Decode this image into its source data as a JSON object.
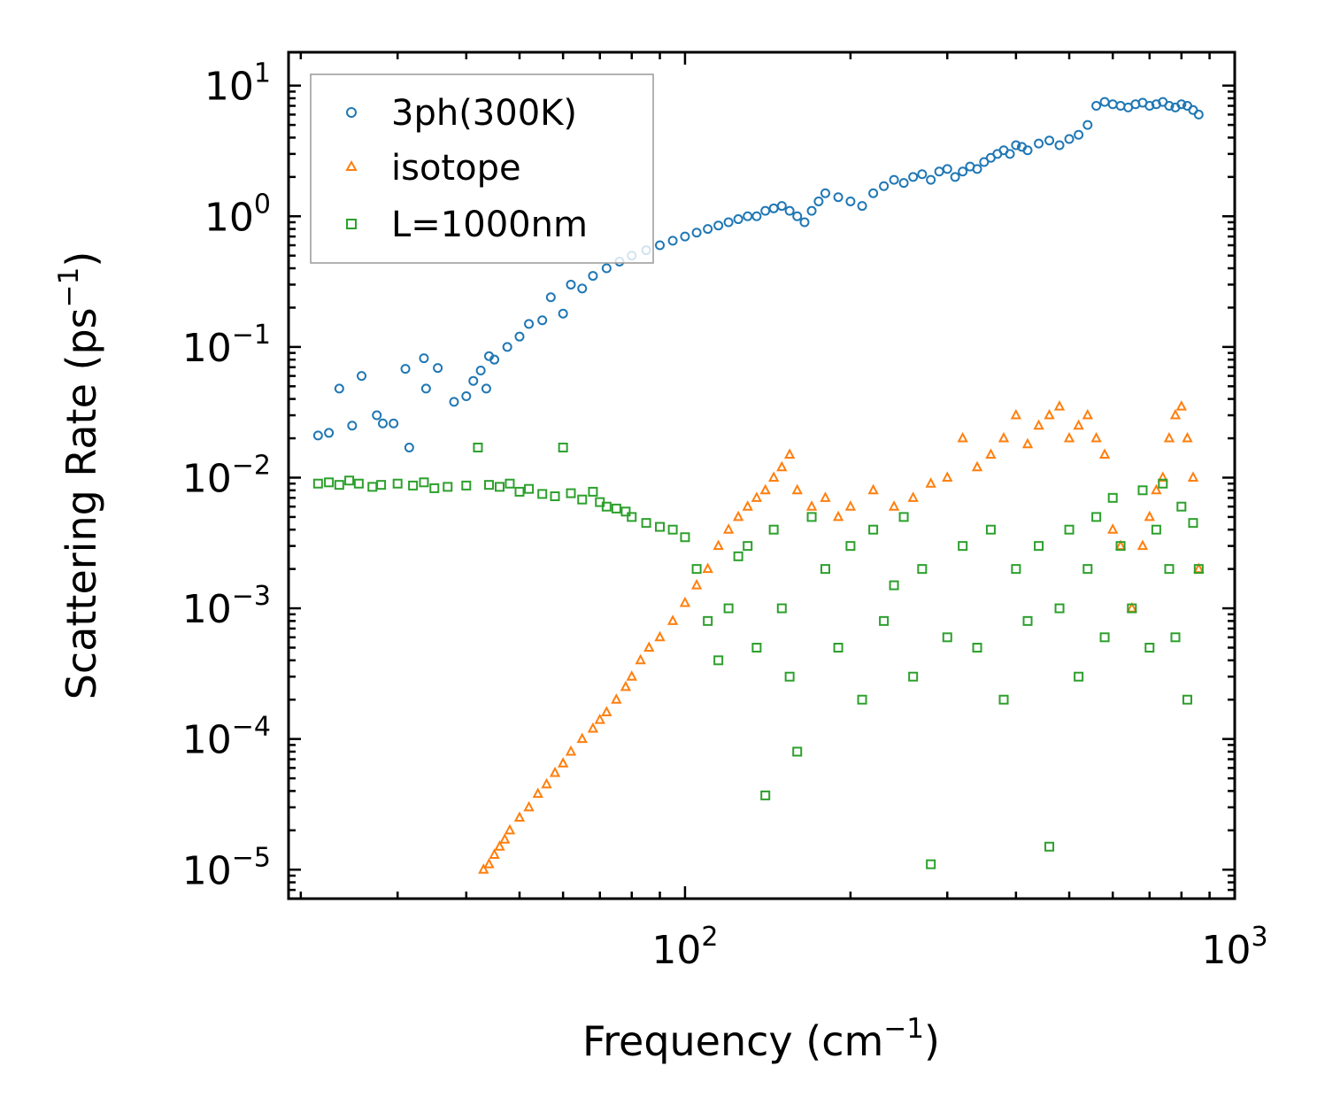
{
  "chart_data": {
    "type": "scatter",
    "title": "",
    "xlabel": "Frequency (cm",
    "xlabel_sup": "−1",
    "xlabel_end": ")",
    "ylabel": "Scattering Rate (ps",
    "ylabel_sup": "−1",
    "ylabel_end": ")",
    "xscale": "log",
    "yscale": "log",
    "xlim": [
      19,
      1000
    ],
    "ylim": [
      6e-06,
      18
    ],
    "grid": false,
    "legend_position": "top-left",
    "x_ticks": [
      {
        "value": 100,
        "base": "10",
        "exp": "2"
      },
      {
        "value": 1000,
        "base": "10",
        "exp": "3"
      }
    ],
    "y_ticks": [
      {
        "value": 10,
        "base": "10",
        "exp": "1"
      },
      {
        "value": 1,
        "base": "10",
        "exp": "0"
      },
      {
        "value": 0.1,
        "base": "10",
        "exp": "−1"
      },
      {
        "value": 0.01,
        "base": "10",
        "exp": "−2"
      },
      {
        "value": 0.001,
        "base": "10",
        "exp": "−3"
      },
      {
        "value": 0.0001,
        "base": "10",
        "exp": "−4"
      },
      {
        "value": 1e-05,
        "base": "10",
        "exp": "−5"
      }
    ],
    "series": [
      {
        "name": "3ph(300K)",
        "marker": "circle",
        "color": "#1f77b4",
        "x": [
          21.5,
          22.5,
          23.5,
          24.8,
          25.8,
          27.5,
          28.2,
          29.5,
          31.0,
          31.5,
          33.5,
          33.8,
          35.5,
          38.0,
          40.0,
          41.2,
          42.5,
          43.5,
          44.0,
          45.0,
          47.5,
          50.0,
          52.0,
          55.0,
          57.0,
          60.0,
          62.0,
          65.0,
          68.0,
          72.0,
          76.0,
          80.0,
          85.0,
          90.0,
          95.0,
          100.0,
          105.0,
          110.0,
          115.0,
          120.0,
          125.0,
          130.0,
          135.0,
          140.0,
          145.0,
          150.0,
          155.0,
          160.0,
          165.0,
          170.0,
          175.0,
          180.0,
          190.0,
          200.0,
          210.0,
          220.0,
          230.0,
          240.0,
          250.0,
          260.0,
          270.0,
          280.0,
          290.0,
          300.0,
          310.0,
          320.0,
          330.0,
          340.0,
          350.0,
          360.0,
          370.0,
          380.0,
          390.0,
          400.0,
          410.0,
          420.0,
          440.0,
          460.0,
          480.0,
          500.0,
          520.0,
          540.0,
          560.0,
          580.0,
          600.0,
          620.0,
          640.0,
          660.0,
          680.0,
          700.0,
          720.0,
          740.0,
          760.0,
          780.0,
          800.0,
          820.0,
          840.0,
          860.0
        ],
        "y": [
          0.021,
          0.022,
          0.048,
          0.025,
          0.06,
          0.03,
          0.026,
          0.026,
          0.068,
          0.017,
          0.082,
          0.048,
          0.069,
          0.038,
          0.042,
          0.055,
          0.066,
          0.048,
          0.085,
          0.08,
          0.1,
          0.12,
          0.15,
          0.16,
          0.24,
          0.18,
          0.3,
          0.28,
          0.35,
          0.4,
          0.45,
          0.5,
          0.55,
          0.6,
          0.65,
          0.7,
          0.75,
          0.8,
          0.85,
          0.9,
          0.95,
          1.0,
          1.0,
          1.1,
          1.15,
          1.2,
          1.1,
          1.0,
          0.9,
          1.1,
          1.3,
          1.5,
          1.4,
          1.3,
          1.2,
          1.5,
          1.7,
          1.9,
          1.8,
          2.0,
          2.1,
          1.9,
          2.2,
          2.3,
          2.0,
          2.2,
          2.4,
          2.3,
          2.6,
          2.8,
          3.0,
          3.2,
          3.0,
          3.5,
          3.4,
          3.2,
          3.6,
          3.8,
          3.5,
          3.9,
          4.2,
          5.0,
          7.0,
          7.5,
          7.2,
          7.0,
          6.8,
          7.2,
          7.4,
          7.0,
          7.2,
          7.5,
          7.0,
          6.8,
          7.2,
          7.0,
          6.5,
          6.0
        ]
      },
      {
        "name": "isotope",
        "marker": "triangle",
        "color": "#ff7f0e",
        "x": [
          43.0,
          44.0,
          45.0,
          46.0,
          47.0,
          48.0,
          50.0,
          52.0,
          54.0,
          56.0,
          58.0,
          60.0,
          62.0,
          65.0,
          68.0,
          70.0,
          72.0,
          75.0,
          78.0,
          80.0,
          83.0,
          86.0,
          90.0,
          95.0,
          100.0,
          105.0,
          110.0,
          115.0,
          120.0,
          125.0,
          130.0,
          135.0,
          140.0,
          145.0,
          150.0,
          155.0,
          160.0,
          170.0,
          180.0,
          190.0,
          200.0,
          220.0,
          240.0,
          260.0,
          280.0,
          300.0,
          320.0,
          340.0,
          360.0,
          380.0,
          400.0,
          420.0,
          440.0,
          460.0,
          480.0,
          500.0,
          520.0,
          540.0,
          560.0,
          580.0,
          600.0,
          620.0,
          650.0,
          680.0,
          700.0,
          720.0,
          740.0,
          760.0,
          780.0,
          800.0,
          820.0,
          840.0,
          860.0
        ],
        "y": [
          1e-05,
          1.1e-05,
          1.3e-05,
          1.5e-05,
          1.7e-05,
          2e-05,
          2.5e-05,
          3e-05,
          3.8e-05,
          4.5e-05,
          5.5e-05,
          6.5e-05,
          8e-05,
          0.0001,
          0.00012,
          0.00014,
          0.00016,
          0.0002,
          0.00025,
          0.0003,
          0.0004,
          0.0005,
          0.0006,
          0.0008,
          0.0011,
          0.0015,
          0.002,
          0.003,
          0.004,
          0.005,
          0.006,
          0.007,
          0.008,
          0.01,
          0.012,
          0.015,
          0.008,
          0.006,
          0.007,
          0.005,
          0.006,
          0.008,
          0.006,
          0.007,
          0.009,
          0.01,
          0.02,
          0.012,
          0.015,
          0.02,
          0.03,
          0.018,
          0.025,
          0.03,
          0.035,
          0.02,
          0.025,
          0.03,
          0.02,
          0.015,
          0.004,
          0.003,
          0.001,
          0.003,
          0.005,
          0.008,
          0.01,
          0.02,
          0.03,
          0.035,
          0.02,
          0.01,
          0.002
        ]
      },
      {
        "name": "L=1000nm",
        "marker": "square",
        "color": "#2ca02c",
        "x": [
          21.5,
          22.5,
          23.5,
          24.5,
          25.5,
          27.0,
          28.0,
          30.0,
          32.0,
          33.5,
          35.0,
          37.0,
          40.0,
          42.0,
          44.0,
          46.0,
          48.0,
          50.0,
          52.0,
          55.0,
          58.0,
          60.0,
          62.0,
          65.0,
          68.0,
          70.0,
          72.0,
          75.0,
          78.0,
          80.0,
          85.0,
          90.0,
          95.0,
          100.0,
          105.0,
          110.0,
          115.0,
          120.0,
          125.0,
          130.0,
          135.0,
          140.0,
          145.0,
          150.0,
          155.0,
          160.0,
          170.0,
          180.0,
          190.0,
          200.0,
          210.0,
          220.0,
          230.0,
          240.0,
          250.0,
          260.0,
          270.0,
          280.0,
          300.0,
          320.0,
          340.0,
          360.0,
          380.0,
          400.0,
          420.0,
          440.0,
          460.0,
          480.0,
          500.0,
          520.0,
          540.0,
          560.0,
          580.0,
          600.0,
          620.0,
          650.0,
          680.0,
          700.0,
          720.0,
          740.0,
          760.0,
          780.0,
          800.0,
          820.0,
          840.0,
          860.0
        ],
        "y": [
          0.009,
          0.0092,
          0.0088,
          0.0095,
          0.009,
          0.0085,
          0.0088,
          0.009,
          0.0087,
          0.0092,
          0.0083,
          0.0085,
          0.0087,
          0.017,
          0.0088,
          0.0085,
          0.009,
          0.0078,
          0.0082,
          0.0075,
          0.0072,
          0.017,
          0.0076,
          0.0068,
          0.0078,
          0.0065,
          0.006,
          0.0058,
          0.0055,
          0.005,
          0.0045,
          0.0042,
          0.004,
          0.0035,
          0.002,
          0.0008,
          0.0004,
          0.001,
          0.0025,
          0.003,
          0.0005,
          3.7e-05,
          0.004,
          0.001,
          0.0003,
          8e-05,
          0.005,
          0.002,
          0.0005,
          0.003,
          0.0002,
          0.004,
          0.0008,
          0.0015,
          0.005,
          0.0003,
          0.002,
          1.1e-05,
          0.0006,
          0.003,
          0.0005,
          0.004,
          0.0002,
          0.002,
          0.0008,
          0.003,
          1.5e-05,
          0.001,
          0.004,
          0.0003,
          0.002,
          0.005,
          0.0006,
          0.007,
          0.003,
          0.001,
          0.008,
          0.0005,
          0.004,
          0.009,
          0.002,
          0.0006,
          0.006,
          0.0002,
          0.0045,
          0.002
        ]
      }
    ]
  }
}
